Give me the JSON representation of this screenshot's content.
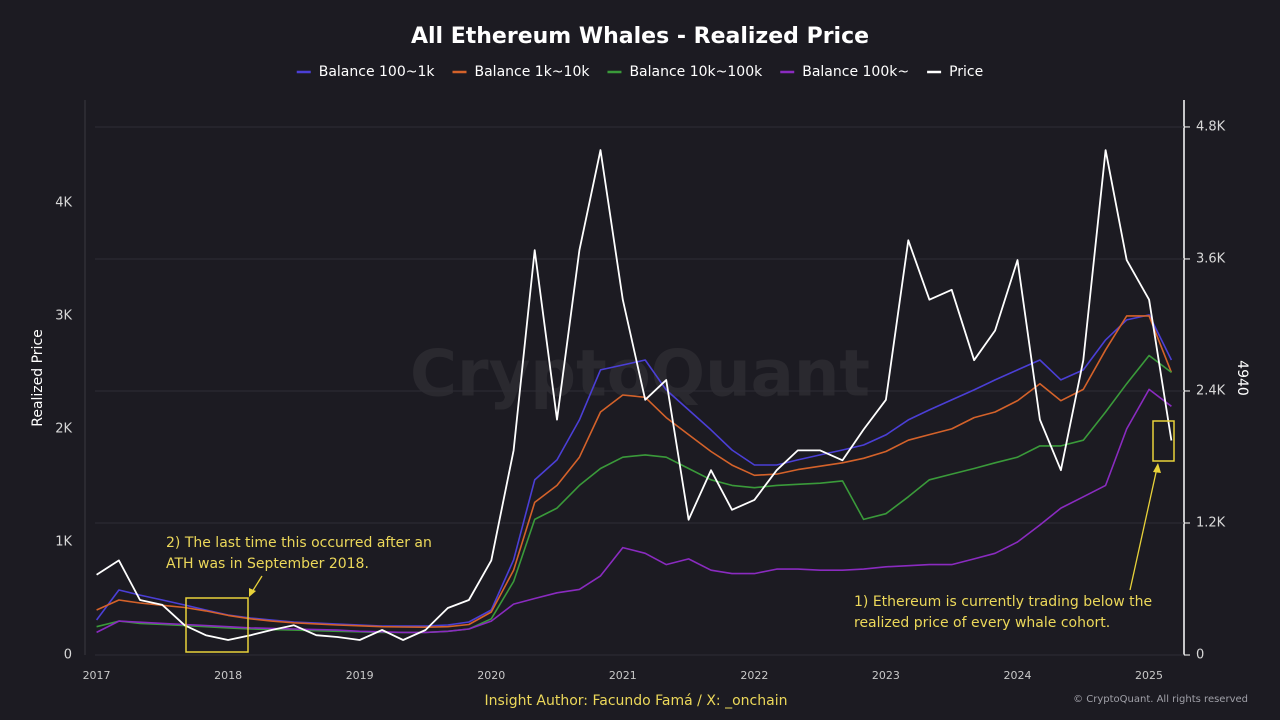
{
  "chart_data": {
    "type": "line",
    "title": "All Ethereum Whales - Realized Price",
    "ylabel": "Realized Price",
    "y2label": "4940",
    "watermark": "CryptoQuant",
    "footer": "Insight Author: Facundo Famá / X: _onchain",
    "copyright": "© CryptoQuant. All rights reserved",
    "annotations": [
      {
        "lines": [
          "1) Ethereum is currently trading below the",
          "realized price of every whale cohort."
        ]
      },
      {
        "lines": [
          "2) The last time this occurred after an",
          "ATH was in September 2018."
        ]
      }
    ],
    "grid": true,
    "legend": "top",
    "xlim": [
      2016.95,
      2025.22
    ],
    "xticks": [
      2017,
      2018,
      2019,
      2020,
      2021,
      2022,
      2023,
      2024,
      2025
    ],
    "ylim": [
      0,
      4910
    ],
    "yticks": [
      0,
      {
        "value": 1000,
        "label": "1K"
      },
      {
        "value": 2000,
        "label": "2K"
      },
      {
        "value": 3000,
        "label": "3K"
      },
      {
        "value": 4000,
        "label": "4K"
      }
    ],
    "y2lim": [
      0,
      5045
    ],
    "y2ticks": [
      0,
      {
        "value": 1200,
        "label": "1.2K"
      },
      {
        "value": 2400,
        "label": "2.4K"
      },
      {
        "value": 3600,
        "label": "3.6K"
      },
      {
        "value": 4800,
        "label": "4.8K"
      }
    ],
    "x": [
      2017,
      2017.17,
      2017.33,
      2017.5,
      2017.67,
      2017.83,
      2018,
      2018.17,
      2018.33,
      2018.5,
      2018.67,
      2018.83,
      2019,
      2019.17,
      2019.33,
      2019.5,
      2019.67,
      2019.83,
      2020,
      2020.17,
      2020.33,
      2020.5,
      2020.67,
      2020.83,
      2021,
      2021.17,
      2021.33,
      2021.5,
      2021.67,
      2021.83,
      2022,
      2022.17,
      2022.33,
      2022.5,
      2022.67,
      2022.83,
      2023,
      2023.17,
      2023.33,
      2023.5,
      2023.67,
      2023.83,
      2024,
      2024.17,
      2024.33,
      2024.5,
      2024.67,
      2024.83,
      2025,
      2025.17
    ],
    "series": [
      {
        "name": "Balance 100~1k",
        "color": "#4b3fd6",
        "values": [
          310,
          575,
          530,
          487,
          442,
          398,
          354,
          327,
          310,
          292,
          283,
          274,
          265,
          257,
          257,
          257,
          265,
          292,
          398,
          841,
          1549,
          1726,
          2080,
          2522,
          2566,
          2610,
          2345,
          2168,
          1991,
          1814,
          1681,
          1681,
          1726,
          1770,
          1814,
          1858,
          1947,
          2080,
          2168,
          2257,
          2345,
          2434,
          2522,
          2610,
          2434,
          2522,
          2788,
          2965,
          3009,
          2610
        ]
      },
      {
        "name": "Balance 1k~10k",
        "color": "#d4622a",
        "values": [
          398,
          487,
          460,
          440,
          420,
          390,
          350,
          320,
          300,
          285,
          275,
          265,
          258,
          250,
          248,
          246,
          250,
          270,
          380,
          750,
          1350,
          1500,
          1750,
          2150,
          2300,
          2280,
          2100,
          1950,
          1800,
          1680,
          1590,
          1600,
          1640,
          1670,
          1700,
          1740,
          1800,
          1900,
          1950,
          2000,
          2100,
          2150,
          2250,
          2400,
          2250,
          2350,
          2700,
          3000,
          3000,
          2500
        ]
      },
      {
        "name": "Balance 10k~100k",
        "color": "#3a9a3a",
        "values": [
          250,
          300,
          280,
          270,
          260,
          250,
          240,
          230,
          225,
          220,
          215,
          210,
          205,
          200,
          200,
          200,
          210,
          230,
          320,
          650,
          1200,
          1300,
          1500,
          1650,
          1750,
          1770,
          1750,
          1650,
          1550,
          1500,
          1480,
          1500,
          1510,
          1520,
          1540,
          1200,
          1250,
          1400,
          1550,
          1600,
          1650,
          1700,
          1750,
          1850,
          1850,
          1900,
          2150,
          2400,
          2650,
          2500
        ]
      },
      {
        "name": "Balance 100k~",
        "color": "#8a2bc0",
        "values": [
          200,
          300,
          290,
          280,
          270,
          260,
          250,
          240,
          235,
          230,
          225,
          220,
          210,
          205,
          200,
          200,
          210,
          230,
          300,
          450,
          500,
          550,
          580,
          700,
          950,
          900,
          800,
          850,
          750,
          720,
          720,
          760,
          760,
          750,
          750,
          760,
          780,
          790,
          800,
          800,
          850,
          900,
          1000,
          1150,
          1300,
          1400,
          1500,
          2000,
          2350,
          2200
        ]
      },
      {
        "name": "Price",
        "color": "#ffffff",
        "axis": "y2",
        "values": [
          730,
          860,
          500,
          455,
          270,
          180,
          136,
          180,
          227,
          270,
          180,
          164,
          136,
          227,
          136,
          227,
          427,
          500,
          860,
          1860,
          3680,
          2140,
          3680,
          4590,
          3230,
          2320,
          2500,
          1230,
          1680,
          1320,
          1410,
          1680,
          1860,
          1860,
          1770,
          2050,
          2320,
          3770,
          3230,
          3320,
          2680,
          2950,
          3590,
          2140,
          1680,
          2680,
          4590,
          3590,
          3230,
          1950
        ]
      }
    ]
  }
}
